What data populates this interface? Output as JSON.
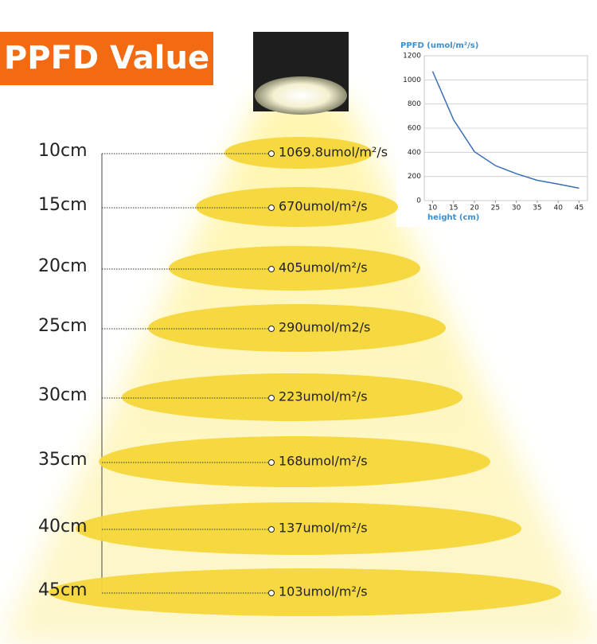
{
  "title": "PPFD Value",
  "levels": [
    {
      "height": "10cm",
      "value": "1069.8umol/m²/s"
    },
    {
      "height": "15cm",
      "value": "670umol/m²/s"
    },
    {
      "height": "20cm",
      "value": "405umol/m²/s"
    },
    {
      "height": "25cm",
      "value": "290umol/m2/s"
    },
    {
      "height": "30cm",
      "value": "223umol/m²/s"
    },
    {
      "height": "35cm",
      "value": "168umol/m²/s"
    },
    {
      "height": "40cm",
      "value": "137umol/m²/s"
    },
    {
      "height": "45cm",
      "value": "103umol/m²/s"
    }
  ],
  "chart_data": {
    "type": "line",
    "title": "PPFD (umol/m²/s)",
    "x_label": "height (cm)",
    "x": [
      10,
      15,
      20,
      25,
      30,
      35,
      40,
      45
    ],
    "values": [
      1069.8,
      670,
      405,
      290,
      223,
      168,
      137,
      103
    ],
    "color": "#3a6fb5",
    "xlim": [
      8,
      47
    ],
    "xticks": [
      10,
      15,
      20,
      25,
      30,
      35,
      40,
      45
    ],
    "ylim": [
      0,
      1200
    ],
    "yticks": [
      0,
      200,
      400,
      600,
      800,
      1000,
      1200
    ],
    "grid": true
  }
}
